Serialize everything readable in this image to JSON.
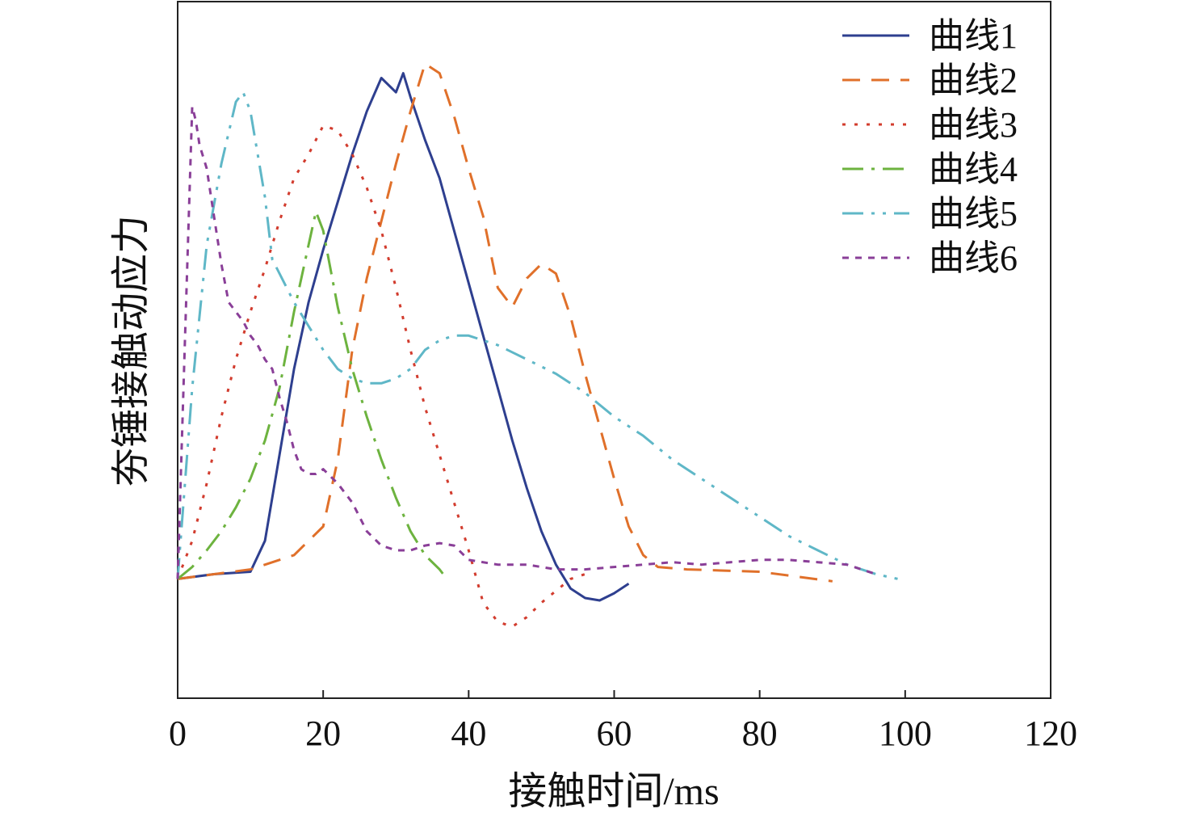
{
  "chart_data": {
    "type": "line",
    "title": "",
    "xlabel": "接触时间/ms",
    "ylabel": "夯锤接触动应力",
    "xlim": [
      0,
      120
    ],
    "ylim": [
      -2.5,
      12.1
    ],
    "x_ticks": [
      "0",
      "20",
      "40",
      "60",
      "80",
      "100",
      "120"
    ],
    "y_ticks": [],
    "grid": false,
    "legend_position": "top-right",
    "series": [
      {
        "name": "曲线1",
        "color": "#2E3F8F",
        "dash": "solid",
        "x": [
          0,
          5,
          10,
          12,
          14,
          16,
          18,
          20,
          22,
          24,
          26,
          28,
          30,
          31,
          32,
          34,
          36,
          38,
          40,
          42,
          44,
          46,
          48,
          50,
          52,
          54,
          56,
          58,
          60,
          62
        ],
        "y": [
          0,
          0.1,
          0.15,
          0.8,
          2.6,
          4.4,
          5.8,
          6.9,
          7.9,
          8.9,
          9.8,
          10.5,
          10.2,
          10.6,
          10.1,
          9.2,
          8.4,
          7.3,
          6.2,
          5.1,
          4.0,
          2.9,
          1.9,
          1.0,
          0.3,
          -0.2,
          -0.4,
          -0.45,
          -0.3,
          -0.1
        ]
      },
      {
        "name": "曲线2",
        "color": "#E0702A",
        "dash": "22 14",
        "x": [
          0,
          10,
          16,
          20,
          22,
          24,
          26,
          28,
          30,
          32,
          34,
          36,
          38,
          40,
          42,
          44,
          46,
          48,
          50,
          52,
          54,
          56,
          58,
          60,
          62,
          64,
          66,
          70,
          80,
          90
        ],
        "y": [
          0,
          0.2,
          0.5,
          1.1,
          2.5,
          4.8,
          6.3,
          7.5,
          8.7,
          9.8,
          10.8,
          10.6,
          9.7,
          8.6,
          7.6,
          6.1,
          5.7,
          6.3,
          6.6,
          6.4,
          5.5,
          4.3,
          3.2,
          2.1,
          1.1,
          0.5,
          0.25,
          0.2,
          0.15,
          -0.05
        ]
      },
      {
        "name": "曲线3",
        "color": "#D23C2E",
        "dash": "4 11",
        "x": [
          0,
          2,
          4,
          6,
          8,
          10,
          12,
          14,
          16,
          18,
          20,
          22,
          24,
          26,
          28,
          30,
          32,
          34,
          36,
          38,
          40,
          42,
          44,
          46,
          48,
          50,
          52,
          54,
          56
        ],
        "y": [
          0,
          0.8,
          2.0,
          3.4,
          4.6,
          5.6,
          6.5,
          7.5,
          8.4,
          8.9,
          9.5,
          9.4,
          8.9,
          8.2,
          7.3,
          6.1,
          4.8,
          3.6,
          2.6,
          1.6,
          0.6,
          -0.5,
          -0.9,
          -1.0,
          -0.8,
          -0.5,
          -0.25,
          0.0,
          0.1
        ]
      },
      {
        "name": "曲线4",
        "color": "#6DB33F",
        "dash": "26 10 4 10",
        "x": [
          0,
          2,
          4,
          6,
          8,
          10,
          12,
          14,
          16,
          18,
          19,
          20,
          22,
          24,
          26,
          28,
          30,
          32,
          34,
          36,
          37
        ],
        "y": [
          0,
          0.25,
          0.6,
          1.0,
          1.5,
          2.1,
          2.9,
          4.0,
          5.6,
          7.0,
          7.7,
          7.3,
          5.7,
          4.4,
          3.4,
          2.5,
          1.7,
          1.0,
          0.5,
          0.2,
          0.0
        ]
      },
      {
        "name": "曲线5",
        "color": "#5FB7C7",
        "dash": "26 10 4 10 4 10",
        "x": [
          0,
          2,
          4,
          6,
          8,
          9,
          10,
          12,
          13,
          14,
          16,
          18,
          20,
          22,
          24,
          26,
          28,
          30,
          32,
          34,
          36,
          38,
          40,
          44,
          48,
          52,
          56,
          60,
          64,
          68,
          72,
          76,
          80,
          84,
          88,
          92,
          96,
          99
        ],
        "y": [
          0,
          4.0,
          7.0,
          8.7,
          10.0,
          10.2,
          9.8,
          8.0,
          6.7,
          6.4,
          5.8,
          5.3,
          4.8,
          4.4,
          4.2,
          4.1,
          4.1,
          4.2,
          4.4,
          4.8,
          5.0,
          5.1,
          5.1,
          4.9,
          4.6,
          4.3,
          3.9,
          3.4,
          3.0,
          2.5,
          2.1,
          1.7,
          1.3,
          0.9,
          0.6,
          0.3,
          0.1,
          0.0
        ]
      },
      {
        "name": "曲线6",
        "color": "#8A3F98",
        "dash": "8 8",
        "x": [
          0,
          1,
          2,
          2.5,
          3,
          4,
          5,
          6,
          7,
          8,
          9,
          10,
          11,
          12,
          13,
          14,
          15,
          16,
          17,
          18,
          19,
          20,
          22,
          24,
          26,
          28,
          30,
          32,
          34,
          36,
          38,
          40,
          44,
          48,
          52,
          56,
          60,
          64,
          68,
          72,
          76,
          80,
          84,
          88,
          92,
          96
        ],
        "y": [
          0,
          5.0,
          9.9,
          9.6,
          9.1,
          8.6,
          7.6,
          6.6,
          5.8,
          5.6,
          5.4,
          5.1,
          4.9,
          4.6,
          4.4,
          3.8,
          3.3,
          2.7,
          2.3,
          2.2,
          2.2,
          2.3,
          2.0,
          1.6,
          1.0,
          0.7,
          0.6,
          0.6,
          0.7,
          0.75,
          0.7,
          0.4,
          0.3,
          0.3,
          0.2,
          0.2,
          0.25,
          0.3,
          0.35,
          0.3,
          0.35,
          0.4,
          0.4,
          0.35,
          0.3,
          0.1
        ]
      }
    ]
  }
}
